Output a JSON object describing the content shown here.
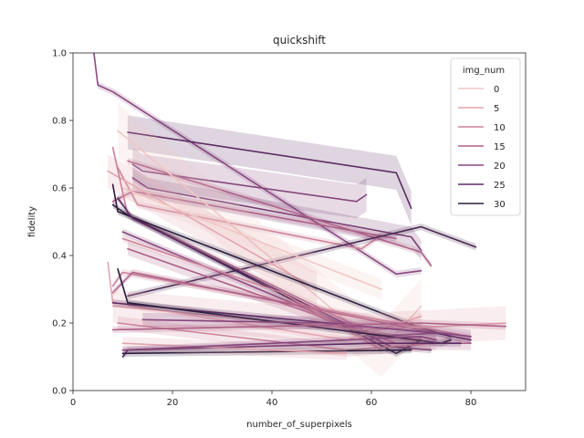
{
  "chart_data": {
    "type": "line",
    "title": "quickshift",
    "xlabel": "number_of_superpixels",
    "ylabel": "fidelity",
    "xlim": [
      0,
      91
    ],
    "ylim": [
      0,
      1
    ],
    "x_ticks": [
      0,
      20,
      40,
      60,
      80
    ],
    "y_ticks": [
      0.0,
      0.2,
      0.4,
      0.6,
      0.8,
      1.0
    ],
    "legend": {
      "title": "img_num",
      "placement": "top-right",
      "entries": [
        {
          "label": "0",
          "color": "#f0c6c4"
        },
        {
          "label": "5",
          "color": "#e2a4ae"
        },
        {
          "label": "10",
          "color": "#cc8299"
        },
        {
          "label": "15",
          "color": "#ad6188"
        },
        {
          "label": "20",
          "color": "#86467c"
        },
        {
          "label": "25",
          "color": "#5d2c64"
        },
        {
          "label": "30",
          "color": "#2d1e3e"
        }
      ]
    },
    "series": [
      {
        "color": "#8a4a80",
        "points": [
          [
            4.2,
            1.0
          ],
          [
            5,
            0.905
          ],
          [
            8,
            0.885
          ],
          [
            65,
            0.345
          ],
          [
            70,
            0.355
          ]
        ],
        "band": 0.01
      },
      {
        "color": "#5d2c64",
        "points": [
          [
            11,
            0.765
          ],
          [
            65,
            0.645
          ],
          [
            68,
            0.54
          ]
        ],
        "band": 0.05
      },
      {
        "color": "#86467c",
        "points": [
          [
            12,
            0.67
          ],
          [
            14,
            0.65
          ],
          [
            57,
            0.56
          ],
          [
            59,
            0.58
          ]
        ],
        "band": 0.05
      },
      {
        "color": "#7a3f74",
        "points": [
          [
            12,
            0.63
          ],
          [
            15,
            0.6
          ],
          [
            68,
            0.455
          ],
          [
            70,
            0.415
          ]
        ],
        "band": 0.03
      },
      {
        "color": "#ad6188",
        "points": [
          [
            11,
            0.68
          ],
          [
            70,
            0.41
          ],
          [
            72,
            0.37
          ]
        ],
        "band": 0.01
      },
      {
        "color": "#cc8299",
        "points": [
          [
            9,
            0.66
          ],
          [
            13,
            0.55
          ],
          [
            58,
            0.42
          ],
          [
            62,
            0.46
          ]
        ],
        "band": 0.01
      },
      {
        "color": "#ad6188",
        "points": [
          [
            8,
            0.56
          ],
          [
            12,
            0.59
          ],
          [
            65,
            0.45
          ]
        ],
        "band": 0.01
      },
      {
        "color": "#4a2a52",
        "points": [
          [
            11,
            0.28
          ],
          [
            70,
            0.485
          ],
          [
            81,
            0.425
          ]
        ],
        "band": 0.01
      },
      {
        "color": "#f0c6c4",
        "points": [
          [
            9,
            0.77
          ],
          [
            62,
            0.12
          ],
          [
            70,
            0.25
          ]
        ],
        "band": 0.08
      },
      {
        "color": "#e2a4ae",
        "points": [
          [
            7,
            0.65
          ],
          [
            49,
            0.3
          ]
        ],
        "band": 0.05
      },
      {
        "color": "#f0c6c4",
        "points": [
          [
            10,
            0.6
          ],
          [
            62,
            0.3
          ]
        ],
        "band": 0.03
      },
      {
        "color": "#cc8299",
        "points": [
          [
            8,
            0.72
          ],
          [
            11,
            0.52
          ],
          [
            60,
            0.17
          ],
          [
            70,
            0.15
          ]
        ],
        "band": 0.01
      },
      {
        "color": "#2d1e3e",
        "points": [
          [
            8,
            0.61
          ],
          [
            9,
            0.53
          ],
          [
            69,
            0.19
          ],
          [
            76,
            0.16
          ]
        ],
        "band": 0.01
      },
      {
        "color": "#2d1e3e",
        "points": [
          [
            8,
            0.55
          ],
          [
            11,
            0.52
          ],
          [
            65,
            0.11
          ],
          [
            70,
            0.15
          ]
        ],
        "band": 0.01
      },
      {
        "color": "#5d2c64",
        "points": [
          [
            9,
            0.57
          ],
          [
            12,
            0.51
          ],
          [
            64,
            0.13
          ],
          [
            72,
            0.12
          ]
        ],
        "band": 0.01
      },
      {
        "color": "#86467c",
        "points": [
          [
            10,
            0.47
          ],
          [
            60,
            0.16
          ],
          [
            73,
            0.17
          ]
        ],
        "band": 0.01
      },
      {
        "color": "#ad6188",
        "points": [
          [
            11,
            0.42
          ],
          [
            65,
            0.14
          ],
          [
            80,
            0.14
          ]
        ],
        "band": 0.02
      },
      {
        "color": "#cc8299",
        "points": [
          [
            10,
            0.45
          ],
          [
            42,
            0.29
          ],
          [
            62,
            0.12
          ]
        ],
        "band": 0.01
      },
      {
        "color": "#e2a4ae",
        "points": [
          [
            7,
            0.38
          ],
          [
            8,
            0.26
          ],
          [
            55,
            0.15
          ],
          [
            70,
            0.22
          ]
        ],
        "band": 0.01
      },
      {
        "color": "#cc8299",
        "points": [
          [
            8,
            0.31
          ],
          [
            10,
            0.35
          ],
          [
            80,
            0.16
          ]
        ],
        "band": 0.01
      },
      {
        "color": "#ad6188",
        "points": [
          [
            8,
            0.29
          ],
          [
            12,
            0.35
          ],
          [
            73,
            0.17
          ]
        ],
        "band": 0.01
      },
      {
        "color": "#e2a4ae",
        "points": [
          [
            8,
            0.25
          ],
          [
            58,
            0.18
          ],
          [
            74,
            0.19
          ],
          [
            87,
            0.2
          ]
        ],
        "band": 0.05
      },
      {
        "color": "#5d2c64",
        "points": [
          [
            8,
            0.26
          ],
          [
            73,
            0.17
          ],
          [
            80,
            0.15
          ]
        ],
        "band": 0.01
      },
      {
        "color": "#2d1e3e",
        "points": [
          [
            9,
            0.36
          ],
          [
            11,
            0.26
          ],
          [
            74,
            0.14
          ],
          [
            76,
            0.15
          ]
        ],
        "band": 0.01
      },
      {
        "color": "#86467c",
        "points": [
          [
            14,
            0.21
          ],
          [
            50,
            0.2
          ],
          [
            74,
            0.17
          ],
          [
            80,
            0.16
          ]
        ],
        "band": 0.02
      },
      {
        "color": "#cc8299",
        "points": [
          [
            9,
            0.2
          ],
          [
            55,
            0.12
          ],
          [
            73,
            0.14
          ]
        ],
        "band": 0.02
      },
      {
        "color": "#5d2c64",
        "points": [
          [
            10,
            0.1
          ],
          [
            11,
            0.12
          ],
          [
            60,
            0.14
          ],
          [
            78,
            0.14
          ]
        ],
        "band": 0.01
      },
      {
        "color": "#2d1e3e",
        "points": [
          [
            10,
            0.11
          ],
          [
            68,
            0.12
          ]
        ],
        "band": 0.01
      },
      {
        "color": "#e2a4ae",
        "points": [
          [
            10,
            0.14
          ],
          [
            55,
            0.11
          ]
        ],
        "band": 0.02
      },
      {
        "color": "#86467c",
        "points": [
          [
            10,
            0.12
          ],
          [
            70,
            0.16
          ],
          [
            73,
            0.15
          ]
        ],
        "band": 0.01
      },
      {
        "color": "#ad6188",
        "points": [
          [
            8,
            0.18
          ],
          [
            70,
            0.2
          ],
          [
            87,
            0.19
          ]
        ],
        "band": 0.01
      }
    ]
  }
}
